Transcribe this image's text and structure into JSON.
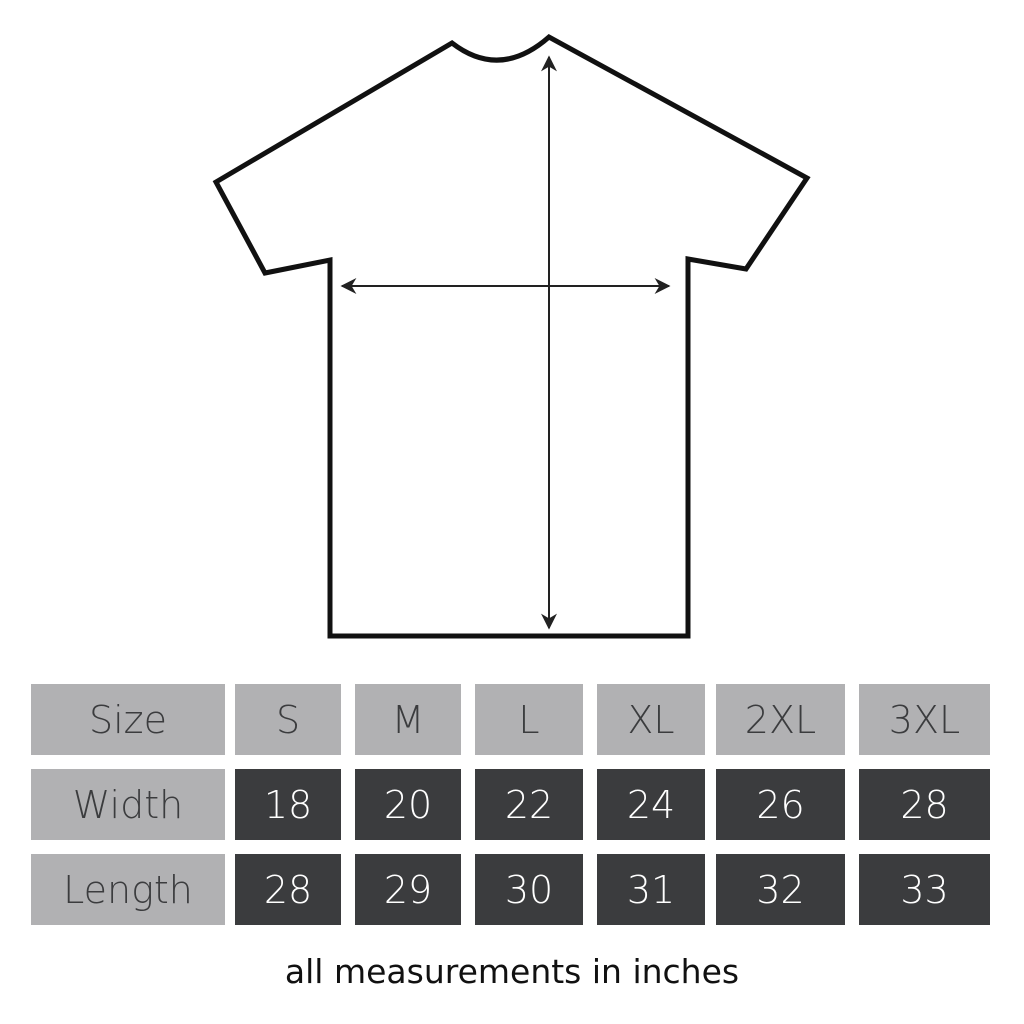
{
  "table": {
    "rows": [
      {
        "label": "Size",
        "values": [
          "S",
          "M",
          "L",
          "XL",
          "2XL",
          "3XL"
        ]
      },
      {
        "label": "Width",
        "values": [
          "18",
          "20",
          "22",
          "24",
          "26",
          "28"
        ]
      },
      {
        "label": "Length",
        "values": [
          "28",
          "29",
          "30",
          "31",
          "32",
          "33"
        ]
      }
    ]
  },
  "note": "all measurements in inches",
  "colors": {
    "header_gray": "#b1b1b3",
    "value_dark": "#3b3c3e",
    "outline": "#111111"
  }
}
